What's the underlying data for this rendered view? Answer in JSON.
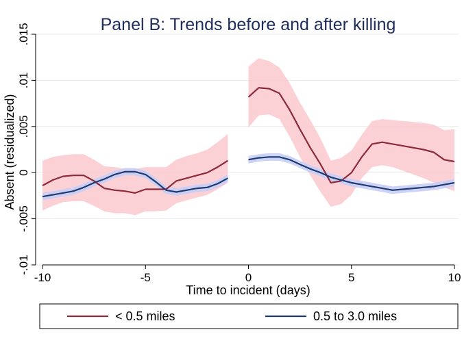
{
  "chart_data": {
    "type": "line",
    "title": "Panel B: Trends before and after killing",
    "xlabel": "Time to incident (days)",
    "ylabel": "Absent (residualized)",
    "xlim": [
      -10,
      10
    ],
    "ylim": [
      -0.01,
      0.015
    ],
    "xticks": [
      -10,
      -5,
      0,
      5,
      10
    ],
    "xtick_labels": [
      "-10",
      "-5",
      "0",
      "5",
      "10"
    ],
    "yticks": [
      -0.01,
      -0.005,
      0,
      0.005,
      0.01,
      0.015
    ],
    "ytick_labels": [
      "-.01",
      "-.005",
      "0",
      ".005",
      ".01",
      ".015"
    ],
    "grid": true,
    "legend_position": "bottom",
    "series": [
      {
        "name": "< 0.5 miles",
        "color": "#8b2a38",
        "band_color": "#fcc9cf",
        "segments": [
          {
            "x": [
              -10,
              -9.5,
              -9,
              -8.5,
              -8,
              -7.5,
              -7,
              -6.5,
              -6,
              -5.5,
              -5,
              -4.5,
              -4,
              -3.5,
              -3,
              -2.5,
              -2,
              -1.5,
              -1
            ],
            "y": [
              -0.0014,
              -0.0008,
              -0.0004,
              -0.0003,
              -0.0003,
              -0.0009,
              -0.0017,
              -0.0019,
              -0.002,
              -0.0022,
              -0.0018,
              -0.0018,
              -0.0018,
              -0.0009,
              -0.0006,
              -0.0003,
              0.0,
              0.0006,
              0.0013
            ],
            "lower": [
              -0.0041,
              -0.0036,
              -0.0032,
              -0.0031,
              -0.0031,
              -0.0036,
              -0.0042,
              -0.0044,
              -0.0044,
              -0.0046,
              -0.0042,
              -0.0042,
              -0.0041,
              -0.0033,
              -0.003,
              -0.0027,
              -0.0024,
              -0.0018,
              -0.0011
            ],
            "upper": [
              0.0013,
              0.0017,
              0.0019,
              0.002,
              0.002,
              0.0014,
              0.0007,
              0.0006,
              0.0004,
              0.0004,
              0.0006,
              0.0006,
              0.0006,
              0.0014,
              0.0018,
              0.0021,
              0.0025,
              0.0033,
              0.0042
            ]
          },
          {
            "x": [
              0,
              0.5,
              1,
              1.5,
              2,
              2.5,
              3,
              3.5,
              4,
              4.5,
              5,
              5.5,
              6,
              6.5,
              7,
              7.5,
              8,
              8.5,
              9,
              9.5,
              10
            ],
            "y": [
              0.0082,
              0.0092,
              0.0091,
              0.0086,
              0.0068,
              0.0047,
              0.0027,
              0.0009,
              -0.0011,
              -0.0009,
              0.0,
              0.0017,
              0.0031,
              0.0033,
              0.0031,
              0.0029,
              0.0027,
              0.0025,
              0.0022,
              0.0014,
              0.0012
            ],
            "lower": [
              0.0049,
              0.0062,
              0.0063,
              0.0058,
              0.0039,
              0.0017,
              -0.0003,
              -0.0021,
              -0.0037,
              -0.0034,
              -0.0024,
              -0.0006,
              0.0006,
              0.0008,
              0.0006,
              0.0002,
              -0.0002,
              -0.0006,
              -0.0011,
              -0.0016,
              -0.002
            ],
            "upper": [
              0.0115,
              0.0124,
              0.0121,
              0.0114,
              0.0097,
              0.0076,
              0.0057,
              0.0037,
              0.0013,
              0.0016,
              0.0024,
              0.0041,
              0.0056,
              0.0058,
              0.0057,
              0.0056,
              0.0055,
              0.0054,
              0.0052,
              0.0046,
              0.0047
            ]
          }
        ]
      },
      {
        "name": "0.5 to 3.0 miles",
        "color": "#1f3a6e",
        "band_color": "#c7cdf7",
        "segments": [
          {
            "x": [
              -10,
              -9.5,
              -9,
              -8.5,
              -8,
              -7.5,
              -7,
              -6.5,
              -6,
              -5.5,
              -5,
              -4.5,
              -4,
              -3.5,
              -3,
              -2.5,
              -2,
              -1.5,
              -1
            ],
            "y": [
              -0.0026,
              -0.0024,
              -0.0022,
              -0.002,
              -0.0016,
              -0.0011,
              -0.0007,
              -0.0002,
              0.0001,
              0.0001,
              -0.0002,
              -0.001,
              -0.0019,
              -0.0021,
              -0.0019,
              -0.0017,
              -0.0016,
              -0.0012,
              -0.0006
            ],
            "lower": [
              -0.003,
              -0.0028,
              -0.0026,
              -0.0024,
              -0.002,
              -0.0015,
              -0.0011,
              -0.0006,
              -0.0003,
              -0.0003,
              -0.0006,
              -0.0014,
              -0.0023,
              -0.0025,
              -0.0023,
              -0.0021,
              -0.002,
              -0.0016,
              -0.001
            ],
            "upper": [
              -0.0022,
              -0.002,
              -0.0018,
              -0.0016,
              -0.0012,
              -0.0007,
              -0.0003,
              0.0002,
              0.0005,
              0.0005,
              0.0002,
              -0.0006,
              -0.0015,
              -0.0017,
              -0.0015,
              -0.0013,
              -0.0012,
              -0.0008,
              -0.0002
            ]
          },
          {
            "x": [
              0,
              0.5,
              1,
              1.5,
              2,
              2.5,
              3,
              3.5,
              4,
              4.5,
              5,
              5.5,
              6,
              6.5,
              7,
              7.5,
              8,
              8.5,
              9,
              9.5,
              10
            ],
            "y": [
              0.0014,
              0.0016,
              0.0017,
              0.0017,
              0.0014,
              0.0009,
              0.0004,
              0.0,
              -0.0005,
              -0.0008,
              -0.0011,
              -0.0013,
              -0.0015,
              -0.0017,
              -0.0019,
              -0.0018,
              -0.0017,
              -0.0016,
              -0.0015,
              -0.0013,
              -0.0011
            ],
            "lower": [
              0.001,
              0.0012,
              0.0013,
              0.0013,
              0.001,
              0.0005,
              0.0,
              -0.0004,
              -0.0009,
              -0.0012,
              -0.0015,
              -0.0017,
              -0.0019,
              -0.0021,
              -0.0023,
              -0.0022,
              -0.0021,
              -0.002,
              -0.0019,
              -0.0017,
              -0.0015
            ],
            "upper": [
              0.0018,
              0.002,
              0.0021,
              0.0021,
              0.0018,
              0.0013,
              0.0008,
              0.0004,
              -0.0001,
              -0.0004,
              -0.0007,
              -0.0009,
              -0.0011,
              -0.0013,
              -0.0015,
              -0.0014,
              -0.0013,
              -0.0012,
              -0.0011,
              -0.0009,
              -0.0007
            ]
          }
        ]
      }
    ]
  }
}
